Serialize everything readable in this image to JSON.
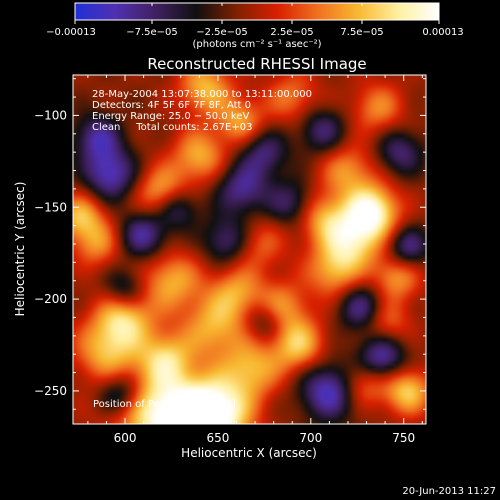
{
  "chart_data": {
    "type": "heatmap",
    "title": "Reconstructed RHESSI Image",
    "xlabel": "Heliocentric X (arcsec)",
    "ylabel": "Heliocentric Y (arcsec)",
    "xlim": [
      572,
      762
    ],
    "ylim": [
      -268,
      -78
    ],
    "x_ticks": [
      {
        "value": 600,
        "label": "600"
      },
      {
        "value": 650,
        "label": "650"
      },
      {
        "value": 700,
        "label": "700"
      },
      {
        "value": 750,
        "label": "750"
      }
    ],
    "y_ticks": [
      {
        "value": -100,
        "label": "−100"
      },
      {
        "value": -150,
        "label": "−150"
      },
      {
        "value": -200,
        "label": "−200"
      },
      {
        "value": -250,
        "label": "−250"
      }
    ],
    "colorbar": {
      "min": -0.00013,
      "max": 0.00013,
      "ticks": [
        {
          "value": -0.00013,
          "label": "−0.00013"
        },
        {
          "value": -7.5e-05,
          "label": "−7.5e−05"
        },
        {
          "value": -2.5e-05,
          "label": "−2.5e−05"
        },
        {
          "value": 2.5e-05,
          "label": "2.5e−05"
        },
        {
          "value": 7.5e-05,
          "label": "7.5e−05"
        },
        {
          "value": 0.00013,
          "label": "0.00013"
        }
      ],
      "unit_label": "(photons cm⁻² s⁻¹ asec⁻²)",
      "colors": [
        "#2030d8",
        "#5030b0",
        "#402060",
        "#101010",
        "#802000",
        "#d82000",
        "#f07020",
        "#f8b830",
        "#fff0a0",
        "#ffffff"
      ]
    },
    "annotations": [
      "28‐May‐2004 13:07:38.000 to 13:11:00.000",
      "Detectors: 4F 5F 6F 7F 8F, Att 0",
      "Energy Range: 25.0 − 50.0 keV",
      "Clean     Total counts: 2.67E+03"
    ],
    "peak_label": "Position of Peak: [633,−268]",
    "peak": {
      "x": 633,
      "y": -268
    },
    "sources": [
      {
        "x": 633,
        "y": -266,
        "amp": 1.25,
        "w": 16
      },
      {
        "x": 650,
        "y": -262,
        "amp": 0.95,
        "w": 13
      },
      {
        "x": 608,
        "y": -258,
        "amp": 0.7,
        "w": 15
      },
      {
        "x": 600,
        "y": -210,
        "amp": 0.85,
        "w": 11
      },
      {
        "x": 590,
        "y": -228,
        "amp": 0.7,
        "w": 12
      },
      {
        "x": 625,
        "y": -190,
        "amp": 0.7,
        "w": 11
      },
      {
        "x": 648,
        "y": -215,
        "amp": 0.7,
        "w": 12
      },
      {
        "x": 660,
        "y": -196,
        "amp": 0.6,
        "w": 10
      },
      {
        "x": 622,
        "y": -232,
        "amp": 0.75,
        "w": 10
      },
      {
        "x": 668,
        "y": -238,
        "amp": 0.7,
        "w": 11
      },
      {
        "x": 693,
        "y": -225,
        "amp": 0.8,
        "w": 10
      },
      {
        "x": 684,
        "y": -205,
        "amp": 0.65,
        "w": 10
      },
      {
        "x": 733,
        "y": -152,
        "amp": 1.15,
        "w": 10
      },
      {
        "x": 722,
        "y": -168,
        "amp": 0.9,
        "w": 11
      },
      {
        "x": 706,
        "y": -155,
        "amp": 0.65,
        "w": 10
      },
      {
        "x": 720,
        "y": -130,
        "amp": 0.6,
        "w": 10
      },
      {
        "x": 712,
        "y": -185,
        "amp": 0.65,
        "w": 10
      },
      {
        "x": 746,
        "y": -188,
        "amp": 0.65,
        "w": 9
      },
      {
        "x": 740,
        "y": -212,
        "amp": 0.55,
        "w": 9
      },
      {
        "x": 752,
        "y": -250,
        "amp": 0.85,
        "w": 9
      },
      {
        "x": 728,
        "y": -246,
        "amp": 0.6,
        "w": 9
      },
      {
        "x": 643,
        "y": -85,
        "amp": 0.75,
        "w": 10
      },
      {
        "x": 662,
        "y": -103,
        "amp": 0.65,
        "w": 9
      },
      {
        "x": 640,
        "y": -122,
        "amp": 0.7,
        "w": 10
      },
      {
        "x": 620,
        "y": -142,
        "amp": 0.75,
        "w": 10
      },
      {
        "x": 690,
        "y": -90,
        "amp": 0.5,
        "w": 10
      },
      {
        "x": 736,
        "y": -96,
        "amp": 0.55,
        "w": 10
      },
      {
        "x": 576,
        "y": -155,
        "amp": 0.75,
        "w": 9
      },
      {
        "x": 585,
        "y": -170,
        "amp": 0.55,
        "w": 9
      },
      {
        "x": 672,
        "y": -170,
        "amp": 0.45,
        "w": 10
      },
      {
        "x": 598,
        "y": -252,
        "amp": -0.9,
        "w": 9
      },
      {
        "x": 592,
        "y": -132,
        "amp": -0.85,
        "w": 10
      },
      {
        "x": 585,
        "y": -112,
        "amp": -0.7,
        "w": 9
      },
      {
        "x": 610,
        "y": -165,
        "amp": -0.75,
        "w": 9
      },
      {
        "x": 628,
        "y": -150,
        "amp": -0.7,
        "w": 8
      },
      {
        "x": 600,
        "y": -195,
        "amp": -0.6,
        "w": 8
      },
      {
        "x": 663,
        "y": -140,
        "amp": -0.7,
        "w": 10
      },
      {
        "x": 655,
        "y": -168,
        "amp": -0.65,
        "w": 9
      },
      {
        "x": 675,
        "y": -120,
        "amp": -0.6,
        "w": 9
      },
      {
        "x": 690,
        "y": -148,
        "amp": -0.6,
        "w": 9
      },
      {
        "x": 676,
        "y": -212,
        "amp": -0.55,
        "w": 8
      },
      {
        "x": 706,
        "y": -108,
        "amp": -0.6,
        "w": 9
      },
      {
        "x": 728,
        "y": -205,
        "amp": -0.75,
        "w": 9
      },
      {
        "x": 710,
        "y": -250,
        "amp": -0.9,
        "w": 11
      },
      {
        "x": 738,
        "y": -232,
        "amp": -0.85,
        "w": 9
      },
      {
        "x": 752,
        "y": -172,
        "amp": -0.7,
        "w": 8
      },
      {
        "x": 748,
        "y": -120,
        "amp": -0.6,
        "w": 9
      }
    ]
  },
  "footer": {
    "date": "20‐Jun‐2013 11:27"
  }
}
